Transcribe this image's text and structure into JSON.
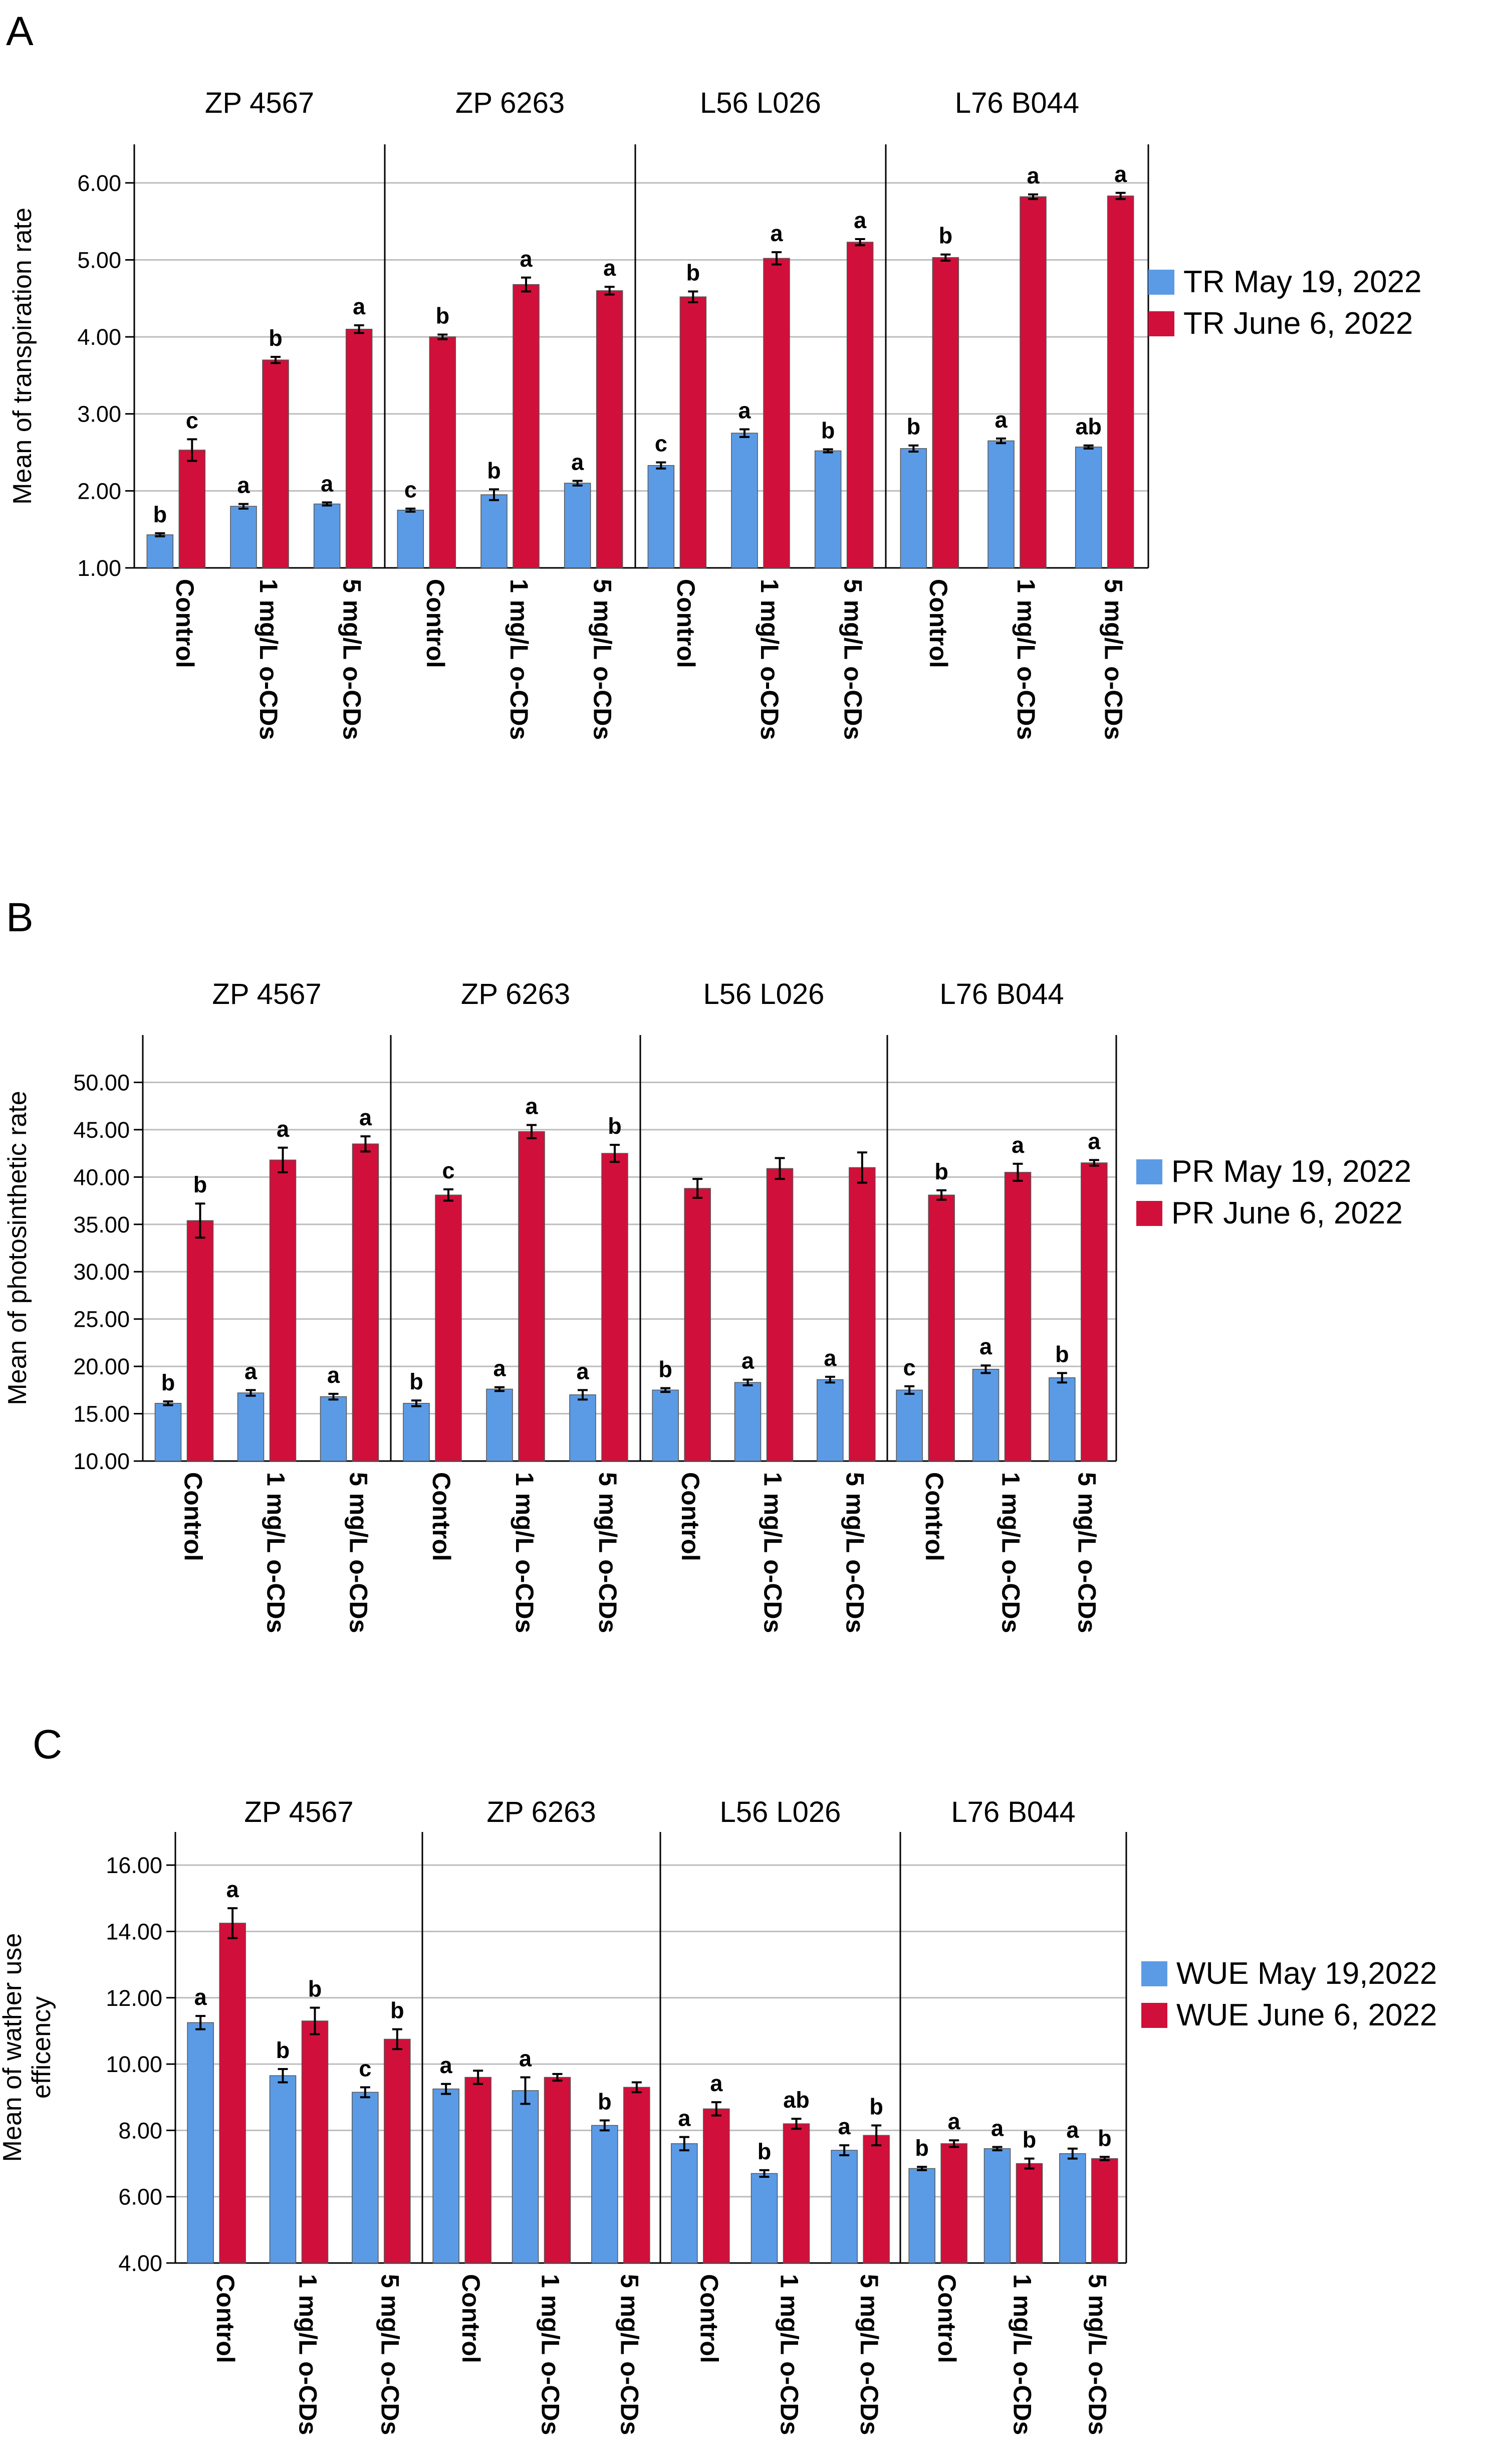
{
  "figure_panels": [
    "A",
    "B",
    "C"
  ],
  "chart_data": [
    {
      "panel": "A",
      "type": "bar",
      "ylabel": "Mean of transpiration rate",
      "ylim": [
        1.0,
        6.5
      ],
      "yticks": [
        "1.00",
        "2.00",
        "3.00",
        "4.00",
        "5.00",
        "6.00"
      ],
      "ytick_values": [
        1,
        2,
        3,
        4,
        5,
        6
      ],
      "categories": [
        "Control",
        "1 mg/L o-CDs",
        "5 mg/L o-CDs"
      ],
      "series_names": [
        "TR May 19, 2022",
        "TR June  6, 2022"
      ],
      "series_colors": [
        "#5B9BE6",
        "#D0103A"
      ],
      "legend_position": "right",
      "groups": [
        {
          "name": "ZP 4567",
          "values": [
            [
              1.43,
              2.53
            ],
            [
              1.8,
              3.7
            ],
            [
              1.83,
              4.1
            ]
          ],
          "errors": [
            [
              0.02,
              0.14
            ],
            [
              0.03,
              0.04
            ],
            [
              0.02,
              0.05
            ]
          ],
          "letters": [
            [
              "b",
              "c"
            ],
            [
              "a",
              "b"
            ],
            [
              "a",
              "a"
            ]
          ]
        },
        {
          "name": "ZP 6263",
          "values": [
            [
              1.75,
              4.0
            ],
            [
              1.95,
              4.68
            ],
            [
              2.1,
              4.6
            ]
          ],
          "errors": [
            [
              0.02,
              0.03
            ],
            [
              0.07,
              0.09
            ],
            [
              0.03,
              0.05
            ]
          ],
          "letters": [
            [
              "c",
              "b"
            ],
            [
              "b",
              "a"
            ],
            [
              "a",
              "a"
            ]
          ]
        },
        {
          "name": "L56 L026",
          "values": [
            [
              2.33,
              4.52
            ],
            [
              2.75,
              5.02
            ],
            [
              2.52,
              5.23
            ]
          ],
          "errors": [
            [
              0.04,
              0.07
            ],
            [
              0.05,
              0.08
            ],
            [
              0.02,
              0.04
            ]
          ],
          "letters": [
            [
              "c",
              "b"
            ],
            [
              "a",
              "a"
            ],
            [
              "b",
              "a"
            ]
          ]
        },
        {
          "name": "L76 B044",
          "values": [
            [
              2.55,
              5.03
            ],
            [
              2.65,
              5.82
            ],
            [
              2.57,
              5.83
            ]
          ],
          "errors": [
            [
              0.04,
              0.04
            ],
            [
              0.03,
              0.03
            ],
            [
              0.02,
              0.04
            ]
          ],
          "letters": [
            [
              "b",
              "b"
            ],
            [
              "a",
              "a"
            ],
            [
              "ab",
              "a"
            ]
          ]
        }
      ]
    },
    {
      "panel": "B",
      "type": "bar",
      "ylabel": "Mean of photosinthetic rate",
      "ylim": [
        10,
        55
      ],
      "yticks": [
        "10.00",
        "15.00",
        "20.00",
        "25.00",
        "30.00",
        "35.00",
        "40.00",
        "45.00",
        "50.00"
      ],
      "ytick_values": [
        10,
        15,
        20,
        25,
        30,
        35,
        40,
        45,
        50
      ],
      "categories": [
        "Control",
        "1 mg/L o-CDs",
        "5 mg/L o-CDs"
      ],
      "series_names": [
        "PR May 19, 2022",
        "PR June  6, 2022"
      ],
      "series_colors": [
        "#5B9BE6",
        "#D0103A"
      ],
      "legend_position": "right",
      "groups": [
        {
          "name": "ZP 4567",
          "values": [
            [
              16.1,
              35.4
            ],
            [
              17.2,
              41.8
            ],
            [
              16.8,
              43.5
            ]
          ],
          "errors": [
            [
              0.2,
              1.8
            ],
            [
              0.3,
              1.3
            ],
            [
              0.3,
              0.8
            ]
          ],
          "letters": [
            [
              "b",
              "b"
            ],
            [
              "a",
              "a"
            ],
            [
              "a",
              "a"
            ]
          ]
        },
        {
          "name": "ZP 6263",
          "values": [
            [
              16.1,
              38.1
            ],
            [
              17.6,
              44.8
            ],
            [
              17.0,
              42.5
            ]
          ],
          "errors": [
            [
              0.3,
              0.6
            ],
            [
              0.2,
              0.7
            ],
            [
              0.5,
              0.9
            ]
          ],
          "letters": [
            [
              "b",
              "c"
            ],
            [
              "a",
              "a"
            ],
            [
              "a",
              "b"
            ]
          ]
        },
        {
          "name": "L56 L026",
          "values": [
            [
              17.5,
              38.8
            ],
            [
              18.3,
              40.9
            ],
            [
              18.6,
              41.0
            ]
          ],
          "errors": [
            [
              0.2,
              1.0
            ],
            [
              0.3,
              1.1
            ],
            [
              0.3,
              1.6
            ]
          ],
          "letters": [
            [
              "b",
              ""
            ],
            [
              "a",
              ""
            ],
            [
              "a",
              ""
            ]
          ]
        },
        {
          "name": "L76 B044",
          "values": [
            [
              17.5,
              38.1
            ],
            [
              19.7,
              40.5
            ],
            [
              18.8,
              41.5
            ]
          ],
          "errors": [
            [
              0.4,
              0.5
            ],
            [
              0.4,
              0.9
            ],
            [
              0.5,
              0.3
            ]
          ],
          "letters": [
            [
              "c",
              "b"
            ],
            [
              "a",
              "a"
            ],
            [
              "b",
              "a"
            ]
          ]
        }
      ]
    },
    {
      "panel": "C",
      "type": "bar",
      "ylabel": "Mean of wather use efficency",
      "ylim": [
        4,
        17
      ],
      "yticks": [
        "4.00",
        "6.00",
        "8.00",
        "10.00",
        "12.00",
        "14.00",
        "16.00"
      ],
      "ytick_values": [
        4,
        6,
        8,
        10,
        12,
        14,
        16
      ],
      "categories": [
        "Control",
        "1 mg/L o-CDs",
        "5 mg/L o-CDs"
      ],
      "series_names": [
        "WUE May 19,2022",
        "WUE June 6, 2022"
      ],
      "series_colors": [
        "#5B9BE6",
        "#D0103A"
      ],
      "legend_position": "right",
      "groups": [
        {
          "name": "ZP 4567",
          "values": [
            [
              11.25,
              14.25
            ],
            [
              9.65,
              11.3
            ],
            [
              9.15,
              10.75
            ]
          ],
          "errors": [
            [
              0.2,
              0.45
            ],
            [
              0.2,
              0.4
            ],
            [
              0.15,
              0.3
            ]
          ],
          "letters": [
            [
              "a",
              "a"
            ],
            [
              "b",
              "b"
            ],
            [
              "c",
              "b"
            ]
          ]
        },
        {
          "name": "ZP 6263",
          "values": [
            [
              9.25,
              9.6
            ],
            [
              9.2,
              9.6
            ],
            [
              8.15,
              9.3
            ]
          ],
          "errors": [
            [
              0.15,
              0.2
            ],
            [
              0.4,
              0.1
            ],
            [
              0.15,
              0.15
            ]
          ],
          "letters": [
            [
              "a",
              ""
            ],
            [
              "a",
              ""
            ],
            [
              "b",
              ""
            ]
          ]
        },
        {
          "name": "L56 L026",
          "values": [
            [
              7.6,
              8.65
            ],
            [
              6.7,
              8.2
            ],
            [
              7.4,
              7.85
            ]
          ],
          "errors": [
            [
              0.2,
              0.2
            ],
            [
              0.1,
              0.15
            ],
            [
              0.15,
              0.3
            ]
          ],
          "letters": [
            [
              "a",
              "a"
            ],
            [
              "b",
              "ab"
            ],
            [
              "a",
              "b"
            ]
          ]
        },
        {
          "name": "L76 B044",
          "values": [
            [
              6.85,
              7.6
            ],
            [
              7.45,
              7.0
            ],
            [
              7.3,
              7.15
            ]
          ],
          "errors": [
            [
              0.05,
              0.1
            ],
            [
              0.05,
              0.15
            ],
            [
              0.15,
              0.05
            ]
          ],
          "letters": [
            [
              "b",
              "a"
            ],
            [
              "a",
              "b"
            ],
            [
              "a",
              "b"
            ]
          ]
        }
      ]
    }
  ]
}
